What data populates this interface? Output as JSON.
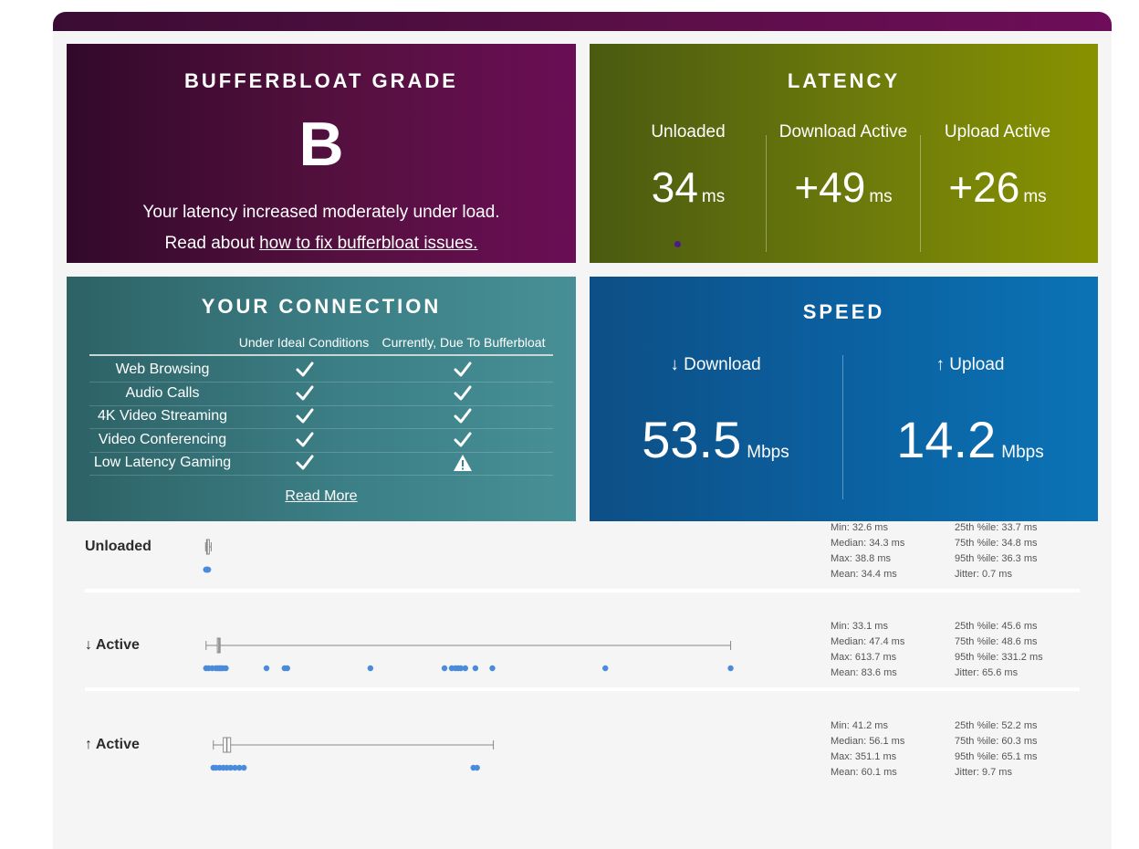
{
  "grade": {
    "title": "BUFFERBLOAT GRADE",
    "letter": "B",
    "description": "Your latency increased moderately under load.",
    "link_prefix": "Read about",
    "link_text": "how to fix bufferbloat issues."
  },
  "latency": {
    "title": "LATENCY",
    "columns": [
      {
        "label": "Unloaded",
        "value": "34",
        "unit": "ms"
      },
      {
        "label": "Download Active",
        "value": "+49",
        "unit": "ms"
      },
      {
        "label": "Upload Active",
        "value": "+26",
        "unit": "ms"
      }
    ]
  },
  "connection": {
    "title": "YOUR CONNECTION",
    "col_ideal": "Under Ideal Conditions",
    "col_current": "Currently, Due To Bufferbloat",
    "rows": [
      {
        "name": "Web Browsing",
        "ideal": "check",
        "current": "check"
      },
      {
        "name": "Audio Calls",
        "ideal": "check",
        "current": "check"
      },
      {
        "name": "4K Video Streaming",
        "ideal": "check",
        "current": "check"
      },
      {
        "name": "Video Conferencing",
        "ideal": "check",
        "current": "check"
      },
      {
        "name": "Low Latency Gaming",
        "ideal": "check",
        "current": "warning"
      }
    ],
    "read_more": "Read More"
  },
  "speed": {
    "title": "SPEED",
    "download": {
      "label": "↓ Download",
      "value": "53.5",
      "unit": "Mbps"
    },
    "upload": {
      "label": "↑ Upload",
      "value": "14.2",
      "unit": "Mbps"
    }
  },
  "stats": [
    {
      "label": "Unloaded",
      "left": [
        "Min: 32.6 ms",
        "Median: 34.3 ms",
        "Max: 38.8 ms",
        "Mean: 34.4 ms"
      ],
      "right": [
        "25th %ile: 33.7 ms",
        "75th %ile: 34.8 ms",
        "95th %ile: 36.3 ms",
        "Jitter: 0.7 ms"
      ],
      "box": {
        "min": 32.6,
        "q1": 33.7,
        "median": 34.3,
        "q3": 34.8,
        "max": 38.8
      }
    },
    {
      "label": "↓ Active",
      "left": [
        "Min: 33.1 ms",
        "Median: 47.4 ms",
        "Max: 613.7 ms",
        "Mean: 83.6 ms"
      ],
      "right": [
        "25th %ile: 45.6 ms",
        "75th %ile: 48.6 ms",
        "95th %ile: 331.2 ms",
        "Jitter: 65.6 ms"
      ],
      "box": {
        "min": 33.1,
        "q1": 45.6,
        "median": 47.4,
        "q3": 48.6,
        "max": 613.7
      }
    },
    {
      "label": "↑ Active",
      "left": [
        "Min: 41.2 ms",
        "Median: 56.1 ms",
        "Max: 351.1 ms",
        "Mean: 60.1 ms"
      ],
      "right": [
        "25th %ile: 52.2 ms",
        "75th %ile: 60.3 ms",
        "95th %ile: 65.1 ms",
        "Jitter: 9.7 ms"
      ],
      "box": {
        "min": 41.2,
        "q1": 52.2,
        "median": 56.1,
        "q3": 60.3,
        "max": 351.1
      }
    }
  ],
  "colors": {
    "dot": "#4a8bdc",
    "box": "#888888"
  },
  "icons": {
    "check": "check-icon",
    "warning": "warning-icon"
  }
}
